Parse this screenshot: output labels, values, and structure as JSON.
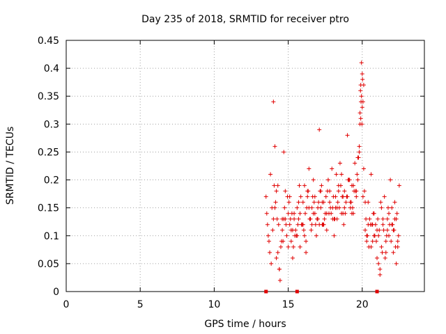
{
  "chart_data": {
    "type": "scatter",
    "title": "Day 235 of 2018, SRMTID for receiver ptro",
    "xlabel": "GPS time / hours",
    "ylabel": "SRMTID / TECUs",
    "xlim": [
      0,
      24.2
    ],
    "ylim": [
      0,
      0.45
    ],
    "xticks": [
      0,
      5,
      10,
      15,
      20
    ],
    "xtick_labels": [
      "0",
      "5",
      "10",
      "15",
      "20"
    ],
    "yticks": [
      0,
      0.05,
      0.1,
      0.15,
      0.2,
      0.25,
      0.3,
      0.35,
      0.4,
      0.45
    ],
    "ytick_labels": [
      "0",
      "0.05",
      "0.1",
      "0.15",
      "0.2",
      "0.25",
      "0.3",
      "0.35",
      "0.4",
      "0.45"
    ],
    "grid": true,
    "marker": "plus",
    "color": "#e00000",
    "gap_markers_x": [
      13.5,
      15.6,
      21.0
    ],
    "series": [
      {
        "name": "SRMTID",
        "x": [
          13.5,
          13.6,
          13.7,
          13.8,
          13.9,
          14.0,
          14.1,
          14.2,
          14.3,
          14.4,
          14.5,
          14.6,
          14.7,
          14.8,
          14.9,
          15.0,
          15.1,
          15.2,
          15.3,
          15.4,
          15.5,
          15.6,
          15.7,
          15.8,
          15.9,
          16.0,
          16.1,
          16.2,
          16.3,
          16.4,
          16.5,
          16.6,
          16.7,
          16.8,
          16.9,
          17.0,
          17.1,
          17.2,
          17.3,
          17.4,
          17.5,
          17.6,
          17.7,
          17.8,
          17.9,
          18.0,
          18.1,
          18.2,
          18.3,
          18.4,
          18.5,
          18.6,
          18.7,
          18.8,
          18.9,
          19.0,
          19.1,
          19.2,
          19.3,
          19.4,
          19.5,
          19.6,
          19.7,
          19.8,
          19.9,
          20.0,
          20.1,
          20.2,
          20.3,
          20.4,
          20.5,
          20.6,
          20.7,
          20.8,
          20.9,
          21.0,
          21.1,
          21.2,
          21.3,
          21.4,
          21.5,
          21.6,
          21.7,
          21.8,
          21.9,
          22.0,
          22.1,
          22.2,
          22.3,
          22.4,
          22.5,
          13.55,
          13.75,
          13.95,
          14.15,
          14.35,
          14.55,
          14.75,
          14.95,
          15.15,
          15.35,
          15.55,
          15.75,
          15.95,
          16.15,
          16.35,
          16.55,
          16.75,
          16.95,
          17.15,
          17.35,
          17.55,
          17.75,
          17.95,
          18.15,
          18.35,
          18.55,
          18.75,
          18.95,
          19.15,
          19.35,
          19.55,
          19.75,
          19.95,
          20.15,
          20.35,
          20.55,
          20.75,
          20.95,
          21.15,
          21.35,
          21.55,
          21.75,
          21.95,
          22.15,
          22.35,
          13.65,
          13.85,
          14.05,
          14.25,
          14.45,
          14.65,
          14.85,
          15.05,
          15.25,
          15.45,
          15.65,
          15.85,
          16.05,
          16.25,
          16.45,
          16.65,
          16.85,
          17.05,
          17.25,
          17.45,
          17.65,
          17.85,
          18.05,
          18.25,
          18.45,
          18.65,
          18.85,
          19.05,
          19.25,
          19.45,
          19.65,
          19.85,
          20.05,
          20.25,
          20.45,
          20.65,
          20.85,
          21.05,
          21.25,
          21.45,
          21.65,
          21.85,
          22.05,
          22.25,
          22.45,
          14.0,
          14.2,
          14.4,
          14.6,
          14.8,
          15.0,
          15.2,
          15.4,
          15.6,
          15.8,
          16.0,
          16.2,
          16.4,
          16.6,
          16.8,
          17.0,
          17.2,
          17.4,
          17.6,
          17.8,
          18.0,
          18.2,
          18.4,
          18.6,
          18.8,
          19.0,
          19.2,
          19.4,
          19.6,
          19.8,
          19.85,
          19.9,
          19.95,
          20.0,
          20.05,
          20.1,
          19.88,
          19.92,
          19.98,
          20.02,
          20.2,
          20.4,
          20.6,
          20.8,
          21.0,
          21.2,
          21.4,
          21.6,
          21.8,
          22.0,
          22.2,
          22.4,
          14.1,
          14.3,
          14.7,
          15.1,
          15.3,
          15.7,
          16.1,
          16.3,
          16.7,
          17.1,
          17.3,
          17.7,
          18.1,
          18.3,
          18.7,
          19.1,
          19.3,
          19.7,
          20.3,
          20.7,
          21.1,
          21.3,
          21.7,
          22.1,
          22.3
        ],
        "y": [
          0.17,
          0.12,
          0.09,
          0.21,
          0.15,
          0.34,
          0.26,
          0.18,
          0.07,
          0.04,
          0.08,
          0.13,
          0.25,
          0.18,
          0.1,
          0.14,
          0.12,
          0.09,
          0.06,
          0.14,
          0.11,
          0.15,
          0.13,
          0.08,
          0.12,
          0.16,
          0.19,
          0.07,
          0.17,
          0.22,
          0.13,
          0.15,
          0.2,
          0.17,
          0.1,
          0.15,
          0.29,
          0.18,
          0.12,
          0.16,
          0.14,
          0.11,
          0.2,
          0.18,
          0.14,
          0.15,
          0.1,
          0.17,
          0.13,
          0.19,
          0.23,
          0.21,
          0.14,
          0.18,
          0.16,
          0.28,
          0.2,
          0.15,
          0.19,
          0.14,
          0.23,
          0.17,
          0.2,
          0.26,
          0.31,
          0.33,
          0.22,
          0.11,
          0.1,
          0.16,
          0.13,
          0.21,
          0.09,
          0.14,
          0.12,
          0.06,
          0.05,
          0.03,
          0.08,
          0.12,
          0.17,
          0.07,
          0.13,
          0.1,
          0.2,
          0.15,
          0.11,
          0.16,
          0.13,
          0.09,
          0.19,
          0.14,
          0.07,
          0.11,
          0.16,
          0.12,
          0.09,
          0.15,
          0.17,
          0.13,
          0.08,
          0.1,
          0.19,
          0.12,
          0.14,
          0.18,
          0.11,
          0.16,
          0.13,
          0.18,
          0.12,
          0.17,
          0.14,
          0.22,
          0.13,
          0.16,
          0.19,
          0.12,
          0.17,
          0.2,
          0.15,
          0.18,
          0.24,
          0.35,
          0.18,
          0.1,
          0.12,
          0.14,
          0.09,
          0.11,
          0.07,
          0.06,
          0.15,
          0.09,
          0.11,
          0.14,
          0.1,
          0.05,
          0.19,
          0.13,
          0.02,
          0.09,
          0.12,
          0.16,
          0.14,
          0.1,
          0.12,
          0.17,
          0.11,
          0.15,
          0.13,
          0.17,
          0.12,
          0.16,
          0.19,
          0.13,
          0.18,
          0.15,
          0.17,
          0.21,
          0.15,
          0.17,
          0.14,
          0.2,
          0.16,
          0.18,
          0.21,
          0.3,
          0.17,
          0.13,
          0.08,
          0.12,
          0.1,
          0.13,
          0.16,
          0.11,
          0.1,
          0.12,
          0.12,
          0.08,
          0.1,
          0.13,
          0.06,
          0.04,
          0.11,
          0.13,
          0.08,
          0.11,
          0.13,
          0.1,
          0.14,
          0.12,
          0.09,
          0.15,
          0.12,
          0.14,
          0.13,
          0.15,
          0.12,
          0.14,
          0.16,
          0.13,
          0.15,
          0.18,
          0.14,
          0.15,
          0.17,
          0.16,
          0.19,
          0.18,
          0.25,
          0.32,
          0.37,
          0.41,
          0.39,
          0.34,
          0.37,
          0.36,
          0.34,
          0.3,
          0.38,
          0.16,
          0.12,
          0.08,
          0.1,
          0.11,
          0.04,
          0.13,
          0.09,
          0.14,
          0.12,
          0.13,
          0.08,
          0.15,
          0.19,
          0.13,
          0.17,
          0.11,
          0.16,
          0.1,
          0.18,
          0.14,
          0.12,
          0.16,
          0.2,
          0.13,
          0.15,
          0.17,
          0.2,
          0.14,
          0.24,
          0.09,
          0.12,
          0.1,
          0.15,
          0.11,
          0.07,
          0.05
        ]
      }
    ]
  }
}
